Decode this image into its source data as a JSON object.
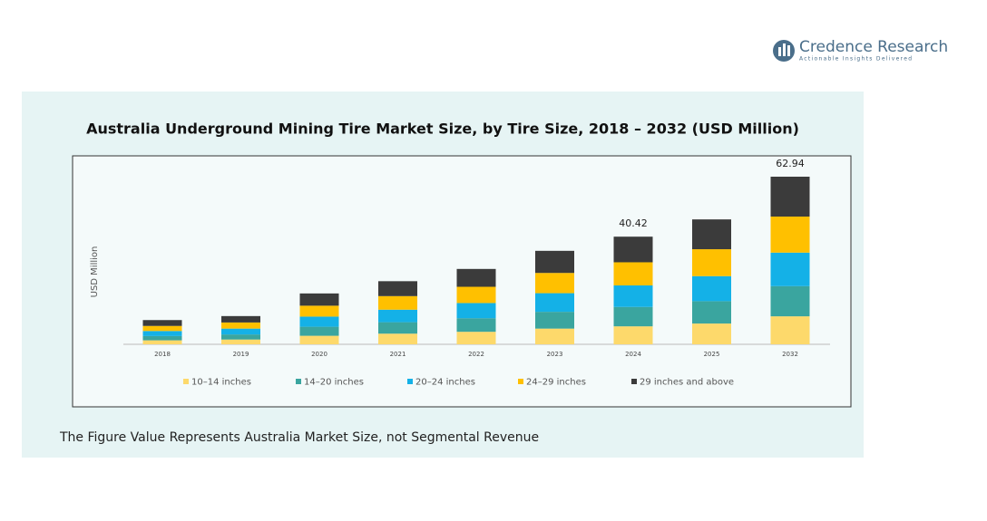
{
  "logo": {
    "name": "Credence Research",
    "tagline": "Actionable Insights Delivered"
  },
  "chart_data": {
    "type": "stacked_bar",
    "title": "Australia Underground Mining Tire Market Size, by Tire Size, 2018 – 2032 (USD Million)",
    "y_label": "USD Million",
    "categories": [
      "2018",
      "2019",
      "2020",
      "2021",
      "2022",
      "2023",
      "2024",
      "2025",
      "2032"
    ],
    "series": [
      {
        "name": "10–14 inches",
        "color": "#fdd96b",
        "values": [
          1.5,
          1.8,
          3.2,
          4.0,
          4.7,
          5.9,
          6.75,
          7.8,
          10.51
        ]
      },
      {
        "name": "14–20 inches",
        "color": "#3aa59f",
        "values": [
          1.6,
          1.9,
          3.4,
          4.3,
          5.1,
          6.3,
          7.28,
          8.4,
          11.33
        ]
      },
      {
        "name": "20–24 inches",
        "color": "#14b1e7",
        "values": [
          1.9,
          2.2,
          3.8,
          4.7,
          5.7,
          7.0,
          8.08,
          9.4,
          12.59
        ]
      },
      {
        "name": "24–29 inches",
        "color": "#ffc000",
        "values": [
          1.9,
          2.3,
          4.1,
          5.1,
          6.1,
          7.6,
          8.69,
          10.1,
          13.53
        ]
      },
      {
        "name": "29 inches and above",
        "color": "#3b3b3b",
        "values": [
          2.2,
          2.4,
          4.6,
          5.6,
          6.7,
          8.3,
          9.62,
          11.2,
          14.98
        ]
      }
    ],
    "totals": [
      null,
      null,
      null,
      null,
      null,
      null,
      40.42,
      null,
      62.94
    ],
    "legend": "bottom",
    "footnote": "The Figure Value Represents Australia Market Size, not Segmental Revenue"
  }
}
